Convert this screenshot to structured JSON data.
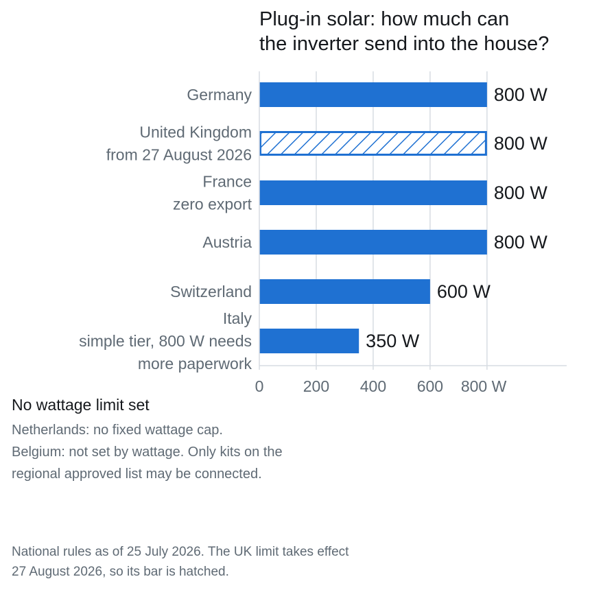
{
  "chart_data": {
    "type": "bar",
    "orientation": "horizontal",
    "title": [
      "Plug-in solar: how much can",
      "the inverter send into the house?"
    ],
    "categories": [
      [
        "Germany"
      ],
      [
        "United Kingdom",
        "from 27 August 2026"
      ],
      [
        "France",
        "zero export"
      ],
      [
        "Austria"
      ],
      [
        "Switzerland"
      ],
      [
        "Italy",
        "simple tier, 800 W needs",
        "more paperwork"
      ]
    ],
    "values": [
      800,
      800,
      800,
      800,
      600,
      350
    ],
    "value_labels": [
      "800 W",
      "800 W",
      "800 W",
      "800 W",
      "600 W",
      "350 W"
    ],
    "hatched": [
      false,
      true,
      false,
      false,
      false,
      false
    ],
    "xlim": [
      0,
      1080
    ],
    "xticks": [
      0,
      200,
      400,
      600,
      800
    ],
    "xtick_labels": [
      "0",
      "200",
      "400",
      "600",
      "800 W"
    ],
    "grid": true,
    "bar_color": "#1f71d2"
  },
  "no_limit": {
    "heading": "No wattage limit set",
    "netherlands": "Netherlands: no fixed wattage cap.",
    "belgium": [
      "Belgium: not set by wattage. Only kits on the",
      "regional approved list may be connected."
    ]
  },
  "footnote": [
    "National rules as of 25 July 2026. The UK limit takes effect",
    "27 August 2026, so its bar is hatched."
  ]
}
